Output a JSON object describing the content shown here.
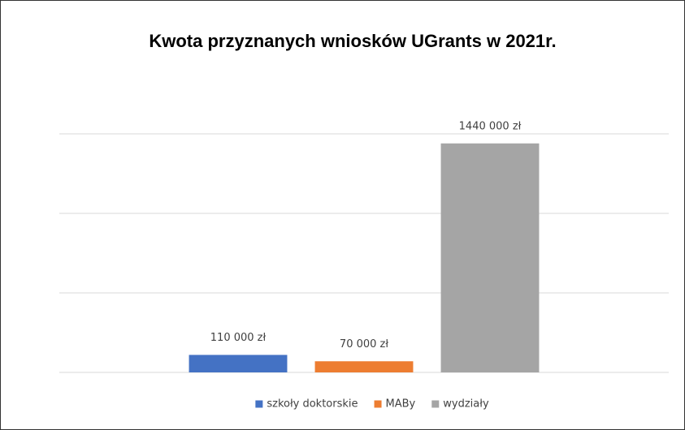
{
  "chart_data": {
    "type": "bar",
    "title": "Kwota przyznanych wniosków UGrants w 2021r.",
    "categories": [
      null
    ],
    "series": [
      {
        "name": "szkoły doktorskie",
        "color": "#4472c4",
        "values": [
          110000
        ],
        "value_labels": [
          "110 000 zł"
        ]
      },
      {
        "name": "MABy",
        "color": "#ed7d31",
        "values": [
          70000
        ],
        "value_labels": [
          "70 000 zł"
        ]
      },
      {
        "name": "wydziały",
        "color": "#a5a5a5",
        "values": [
          1440000
        ],
        "value_labels": [
          "1440 000 zł"
        ]
      }
    ],
    "ylim": [
      0,
      1500000
    ],
    "yticks": [
      0,
      500000,
      1000000,
      1500000
    ],
    "grid": true,
    "legend": "bottom"
  }
}
